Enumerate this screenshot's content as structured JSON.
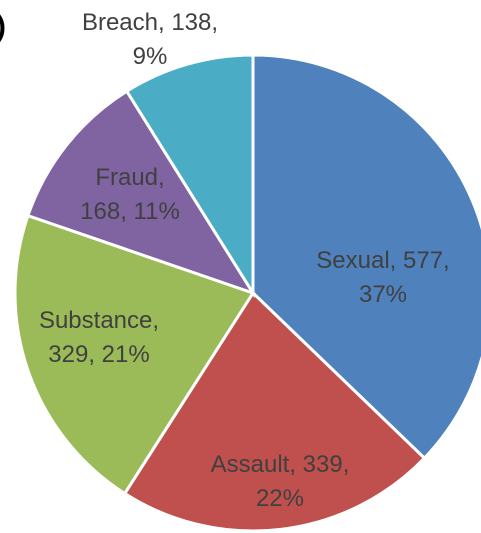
{
  "fragment_text": ")",
  "chart_data": {
    "type": "pie",
    "start_angle_deg": 0,
    "direction": "clockwise",
    "slices": [
      {
        "label": "Sexual",
        "value": 577,
        "percent": "37%",
        "color": "#4F81BD",
        "label_lines": [
          "Sexual, 577,",
          "37%"
        ]
      },
      {
        "label": "Assault",
        "value": 339,
        "percent": "22%",
        "color": "#C0504D",
        "label_lines": [
          "Assault, 339,",
          "22%"
        ]
      },
      {
        "label": "Substance",
        "value": 329,
        "percent": "21%",
        "color": "#9BBB59",
        "label_lines": [
          "Substance,",
          "329, 21%"
        ]
      },
      {
        "label": "Fraud",
        "value": 168,
        "percent": "11%",
        "color": "#8064A2",
        "label_lines": [
          "Fraud,",
          "168, 11%"
        ]
      },
      {
        "label": "Breach",
        "value": 138,
        "percent": "9%",
        "color": "#4BACC6",
        "label_lines": [
          "Breach, 138,",
          "9%"
        ]
      }
    ]
  }
}
